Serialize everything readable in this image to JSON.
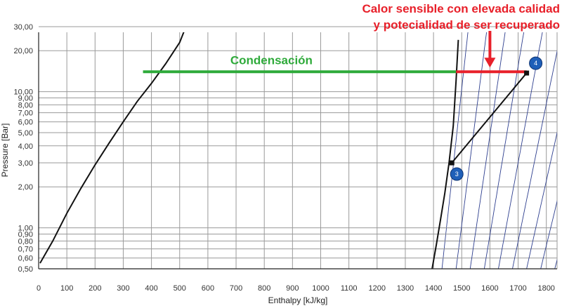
{
  "chart_data": {
    "type": "line",
    "xlabel": "Enthalpy [kJ/kg]",
    "ylabel": "Pressure [Bar]",
    "xlim": [
      0,
      1840
    ],
    "ylim": [
      0.5,
      35
    ],
    "y_scale": "log",
    "grid": true,
    "x_ticks": [
      0,
      100,
      200,
      300,
      400,
      500,
      600,
      700,
      800,
      900,
      1000,
      1100,
      1200,
      1300,
      1400,
      1500,
      1600,
      1700,
      1800
    ],
    "x_tick_labels": [
      "0",
      "100",
      "200",
      "300",
      "400",
      "500",
      "600",
      "700",
      "800",
      "900",
      "1000",
      "1100",
      "1200",
      "1300",
      "1400",
      "1500",
      "1600",
      "1700",
      "1800"
    ],
    "y_ticks": [
      0.5,
      0.6,
      0.7,
      0.8,
      0.9,
      1.0,
      2.0,
      3.0,
      4.0,
      5.0,
      6.0,
      7.0,
      8.0,
      9.0,
      10.0,
      20.0,
      30.0
    ],
    "y_tick_labels": [
      "0,50",
      "0,60",
      "0,70",
      "0,80",
      "0,90",
      "1,00",
      "2,00",
      "3,00",
      "4,00",
      "5,00",
      "6,00",
      "7,00",
      "8,00",
      "9,00",
      "10,00",
      "20,00",
      "30,00"
    ],
    "saturated_liquid": {
      "x": [
        5,
        50,
        100,
        150,
        200,
        250,
        300,
        350,
        400,
        450,
        500,
        530
      ],
      "y": [
        0.55,
        0.8,
        1.28,
        1.95,
        2.9,
        4.2,
        6.0,
        8.5,
        11.5,
        16.0,
        23.0,
        33.0
      ]
    },
    "saturated_vapor": {
      "x": [
        1395,
        1410,
        1425,
        1440,
        1455,
        1470,
        1480,
        1488
      ],
      "y": [
        0.5,
        0.75,
        1.15,
        1.8,
        3.0,
        5.6,
        12.0,
        24.0
      ]
    },
    "condensation_line": {
      "x": [
        370,
        1480
      ],
      "y": [
        14.0,
        14.0
      ],
      "color": "#2eaa3a",
      "label": "Condensación"
    },
    "desuperheating_line": {
      "x": [
        1480,
        1730
      ],
      "y": [
        14.0,
        14.0
      ],
      "color": "#e8202a"
    },
    "compression_line": {
      "x": [
        1465,
        1730
      ],
      "y": [
        3.0,
        13.7
      ]
    },
    "points": [
      {
        "label": "3",
        "x": 1465,
        "y": 3.0
      },
      {
        "label": "4",
        "x": 1730,
        "y": 13.7
      }
    ],
    "annotation": {
      "lines": [
        "Calor sensible con elevada calidad",
        "y potecialidad de ser recuperado"
      ],
      "color": "#e8202a",
      "arrow_to": {
        "x": 1600,
        "y": 14.0
      }
    },
    "isentrope_color": "#2e3f8f",
    "isentropes": [
      {
        "x0": 1430,
        "k": 23
      },
      {
        "x0": 1480,
        "k": 27
      },
      {
        "x0": 1530,
        "k": 31
      },
      {
        "x0": 1580,
        "k": 35
      },
      {
        "x0": 1630,
        "k": 39
      },
      {
        "x0": 1680,
        "k": 43
      },
      {
        "x0": 1730,
        "k": 47
      },
      {
        "x0": 1780,
        "k": 51
      },
      {
        "x0": 1830,
        "k": 55
      }
    ]
  }
}
